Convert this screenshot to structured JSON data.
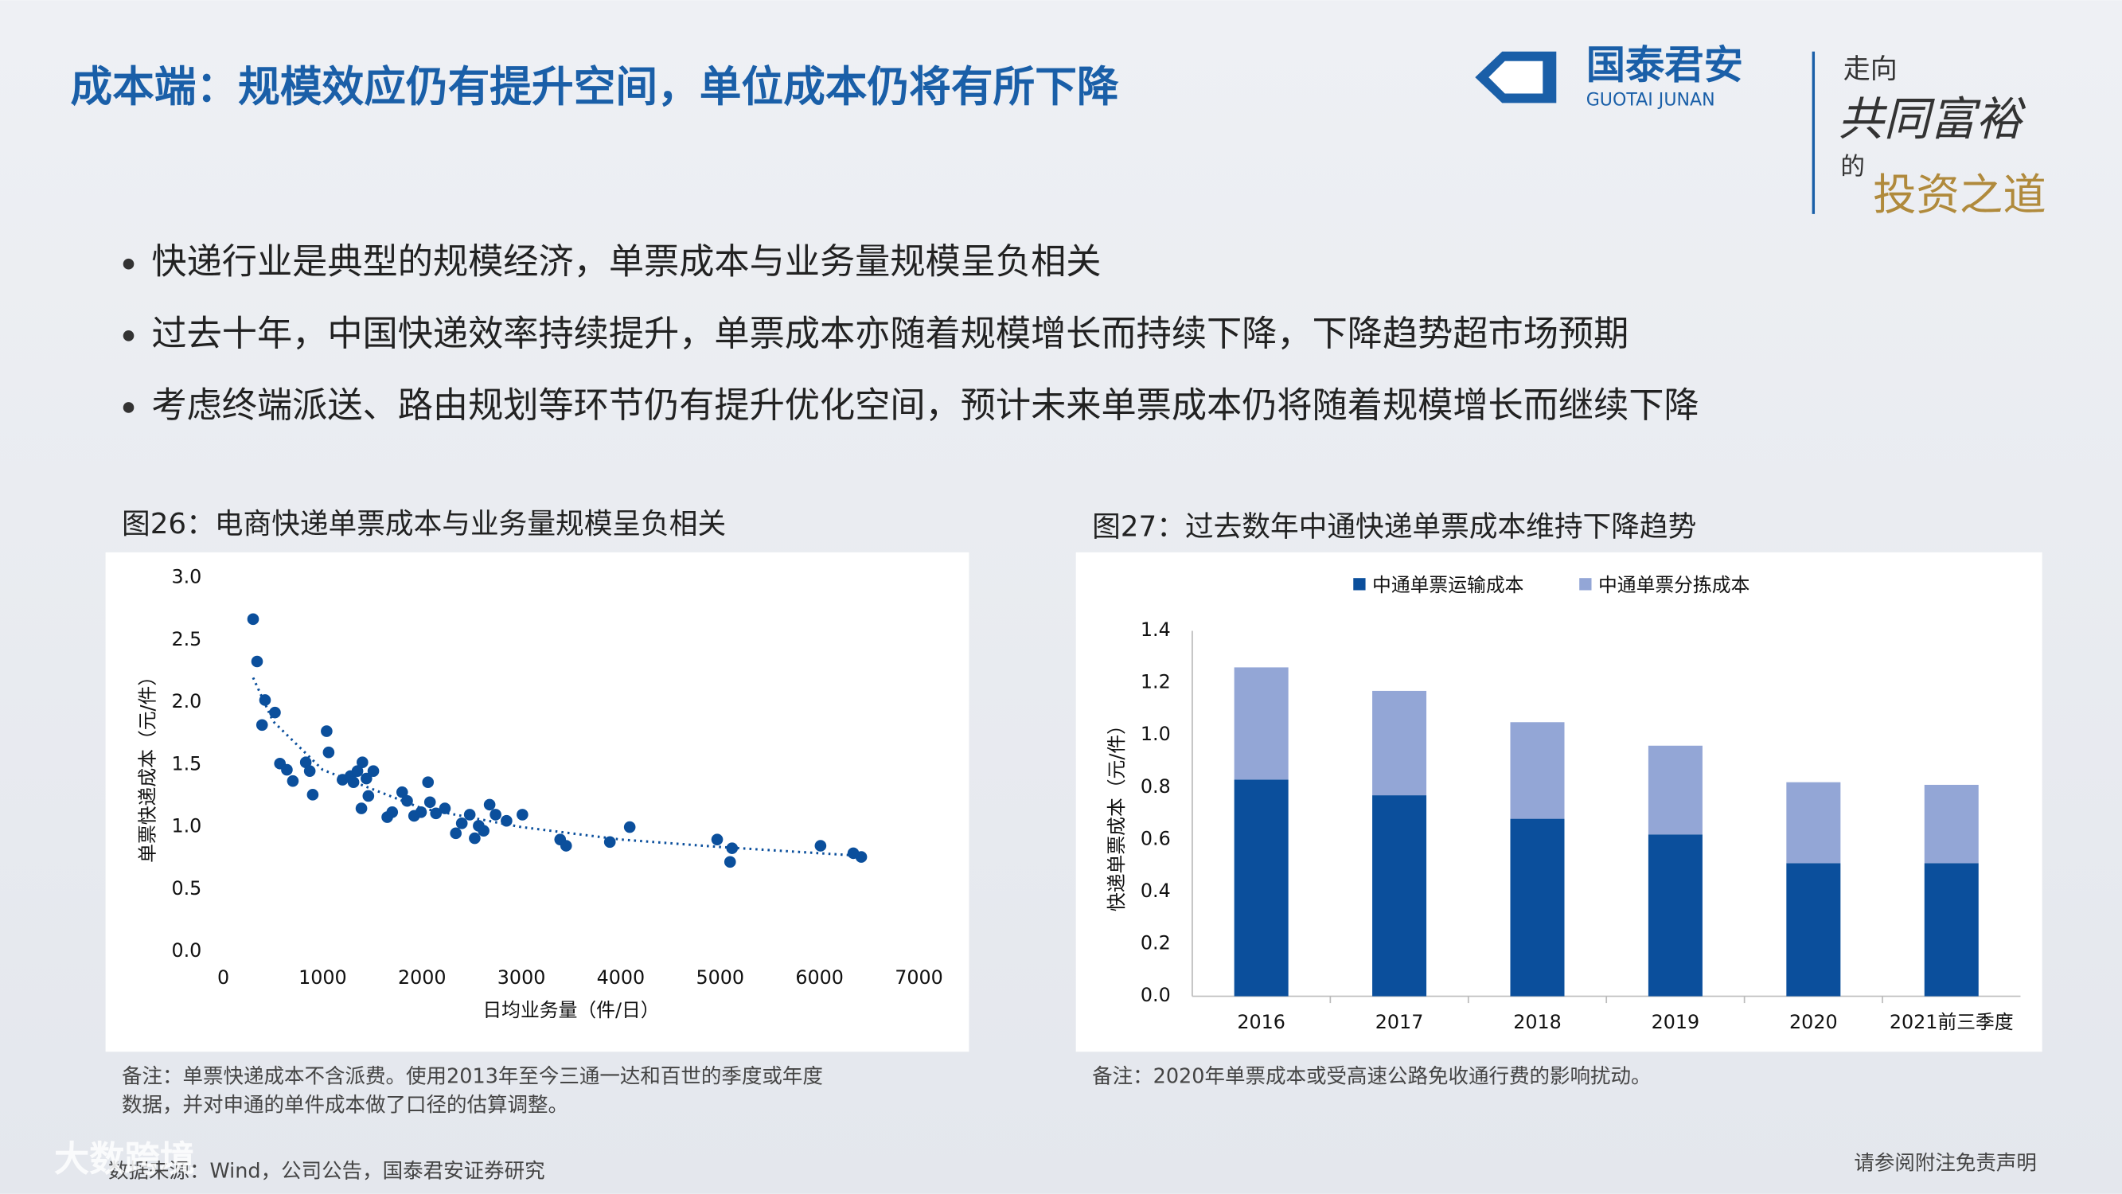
{
  "header": {
    "title": "成本端：规模效应仍有提升空间，单位成本仍将有所下降",
    "logo_cn": "国泰君安",
    "logo_en": "GUOTAI JUNAN",
    "slogan": [
      "走向",
      "共同富裕",
      "的",
      "投资之道"
    ]
  },
  "bullets": [
    "快递行业是典型的规模经济，单票成本与业务量规模呈负相关",
    "过去十年，中国快递效率持续提升，单票成本亦随着规模增长而持续下降，下降趋势超市场预期",
    "考虑终端派送、路由规划等环节仍有提升优化空间，预计未来单票成本仍将随着规模增长而继续下降"
  ],
  "chart_data": [
    {
      "type": "scatter",
      "title": "图26：电商快递单票成本与业务量规模呈负相关",
      "x_label": "日均业务量（件/日）",
      "y_label": "单票快递成本（元/件）",
      "color": "#0b4f9c",
      "x": [
        300,
        340,
        420,
        390,
        520,
        570,
        640,
        700,
        830,
        870,
        900,
        1040,
        1060,
        1200,
        1280,
        1310,
        1350,
        1400,
        1440,
        1510,
        1390,
        1460,
        1650,
        1700,
        1800,
        1850,
        1920,
        1990,
        2060,
        2080,
        2140,
        2230,
        2340,
        2400,
        2480,
        2530,
        2570,
        2620,
        2680,
        2740,
        2850,
        3010,
        3390,
        3450,
        3890,
        4090,
        4970,
        5120,
        5100,
        6010,
        6340,
        6420
      ],
      "values": [
        2.67,
        2.33,
        2.02,
        1.82,
        1.92,
        1.51,
        1.46,
        1.37,
        1.52,
        1.45,
        1.26,
        1.77,
        1.6,
        1.38,
        1.41,
        1.36,
        1.45,
        1.52,
        1.39,
        1.45,
        1.15,
        1.25,
        1.08,
        1.12,
        1.28,
        1.21,
        1.09,
        1.12,
        1.36,
        1.2,
        1.11,
        1.15,
        0.95,
        1.03,
        1.1,
        0.91,
        1.01,
        0.97,
        1.18,
        1.1,
        1.05,
        1.1,
        0.9,
        0.85,
        0.88,
        1.0,
        0.9,
        0.83,
        0.72,
        0.85,
        0.79,
        0.76
      ],
      "trend": {
        "x": [
          300,
          500,
          1000,
          2000,
          3000,
          4000,
          5000,
          6400
        ],
        "values": [
          2.2,
          1.85,
          1.46,
          1.15,
          1.0,
          0.9,
          0.84,
          0.77
        ]
      },
      "xlim": [
        0,
        7000
      ],
      "xticks": [
        0,
        1000,
        2000,
        3000,
        4000,
        5000,
        6000,
        7000
      ],
      "ylim": [
        0,
        3
      ],
      "yticks": [
        {
          "value": 0,
          "label": "0.0"
        },
        {
          "value": 0.5,
          "label": "0.5"
        },
        {
          "value": 1,
          "label": "1.0"
        },
        {
          "value": 1.5,
          "label": "1.5"
        },
        {
          "value": 2,
          "label": "2.0"
        },
        {
          "value": 2.5,
          "label": "2.5"
        },
        {
          "value": 3,
          "label": "3.0"
        }
      ],
      "note": [
        "备注：单票快递成本不含派费。使用2013年至今三通一达和百世的季度或年度",
        "数据，并对申通的单件成本做了口径的估算调整。"
      ]
    },
    {
      "type": "bar",
      "stacked": true,
      "title": "图27：过去数年中通快递单票成本维持下降趋势",
      "y_label": "快递单票成本（元/件）",
      "legend": "top",
      "categories": [
        "2016",
        "2017",
        "2018",
        "2019",
        "2020",
        "2021前三季度"
      ],
      "series": [
        {
          "name": "中通单票运输成本",
          "color": "#0b4f9c",
          "values": [
            0.83,
            0.77,
            0.68,
            0.62,
            0.51,
            0.51
          ]
        },
        {
          "name": "中通单票分拣成本",
          "color": "#93a6d6",
          "values": [
            0.43,
            0.4,
            0.37,
            0.34,
            0.31,
            0.3
          ]
        }
      ],
      "ylim": [
        0,
        1.4
      ],
      "yticks": [
        {
          "value": 0,
          "label": "0.0"
        },
        {
          "value": 0.2,
          "label": "0.2"
        },
        {
          "value": 0.4,
          "label": "0.4"
        },
        {
          "value": 0.6,
          "label": "0.6"
        },
        {
          "value": 0.8,
          "label": "0.8"
        },
        {
          "value": 1,
          "label": "1.0"
        },
        {
          "value": 1.2,
          "label": "1.2"
        },
        {
          "value": 1.4,
          "label": "1.4"
        }
      ],
      "note": [
        "备注：2020年单票成本或受高速公路免收通行费的影响扰动。"
      ]
    }
  ],
  "footer": {
    "source": "数据来源：Wind，公司公告，国泰君安证券研究",
    "disclaimer": "请参阅附注免责声明"
  },
  "watermark": "大数跨境"
}
